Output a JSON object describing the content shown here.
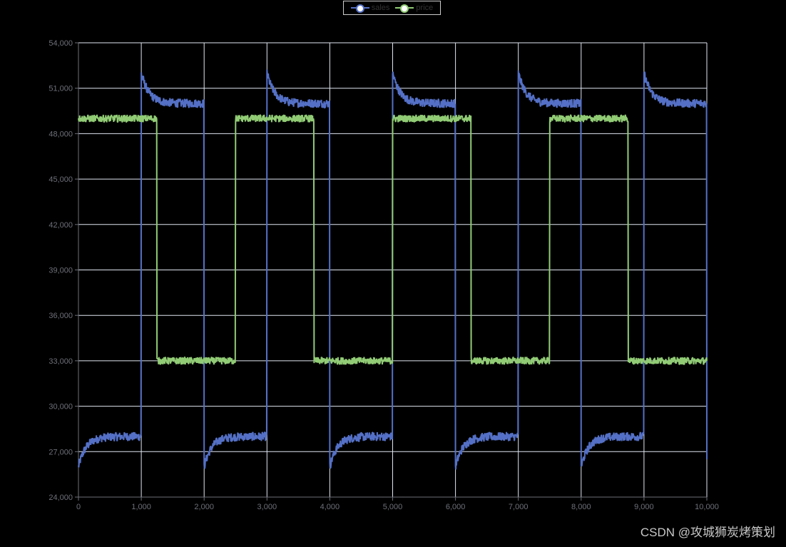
{
  "legend": {
    "items": [
      {
        "name": "sales",
        "color": "#5470c6"
      },
      {
        "name": "price",
        "color": "#91cc75"
      }
    ]
  },
  "watermark": "CSDN @攻城狮炭烤策划",
  "chart_data": {
    "type": "line",
    "title": "",
    "xlabel": "",
    "ylabel": "",
    "xlim": [
      0,
      10000
    ],
    "ylim": [
      24000,
      54000
    ],
    "x_ticks": [
      "0",
      "1,000",
      "2,000",
      "3,000",
      "4,000",
      "5,000",
      "6,000",
      "7,000",
      "8,000",
      "9,000",
      "10,000"
    ],
    "y_ticks": [
      "24,000",
      "27,000",
      "30,000",
      "33,000",
      "36,000",
      "39,000",
      "42,000",
      "45,000",
      "48,000",
      "51,000",
      "54,000"
    ],
    "grid": true,
    "legend_position": "top-center",
    "background": "#000000",
    "series": [
      {
        "name": "sales",
        "color": "#5470c6",
        "description": "Square-wave-like: low phase starts ~26,000 and rises to ~28,000 plateau; high phase starts ~52,000 and decays to ~50,000 plateau. Phase switches every 1,000 x-units.",
        "segments": [
          {
            "x0": 0,
            "x1": 1000,
            "start": 26000,
            "plateau": 28000,
            "noise": 300
          },
          {
            "x0": 1000,
            "x1": 2000,
            "start": 52000,
            "plateau": 50000,
            "noise": 300
          },
          {
            "x0": 2000,
            "x1": 3000,
            "start": 26000,
            "plateau": 28000,
            "noise": 300
          },
          {
            "x0": 3000,
            "x1": 4000,
            "start": 52000,
            "plateau": 50000,
            "noise": 300
          },
          {
            "x0": 4000,
            "x1": 5000,
            "start": 26000,
            "plateau": 28000,
            "noise": 300
          },
          {
            "x0": 5000,
            "x1": 6000,
            "start": 52000,
            "plateau": 50000,
            "noise": 300
          },
          {
            "x0": 6000,
            "x1": 7000,
            "start": 26000,
            "plateau": 28000,
            "noise": 300
          },
          {
            "x0": 7000,
            "x1": 8000,
            "start": 52000,
            "plateau": 50000,
            "noise": 300
          },
          {
            "x0": 8000,
            "x1": 9000,
            "start": 26000,
            "plateau": 28000,
            "noise": 300
          },
          {
            "x0": 9000,
            "x1": 10000,
            "start": 52000,
            "plateau": 50000,
            "noise": 300
          }
        ],
        "sampled": {
          "x": [
            0,
            100,
            250,
            500,
            999,
            1000,
            1100,
            1250,
            1500,
            1999,
            2000,
            2100,
            2250,
            2500,
            2999,
            3000,
            3100,
            3250,
            3500,
            3999,
            4000,
            4100,
            4250,
            4500,
            4999,
            5000,
            5100,
            5250,
            5500,
            5999,
            6000,
            6100,
            6250,
            6500,
            6999,
            7000,
            7100,
            7250,
            7500,
            7999,
            8000,
            8100,
            8250,
            8500,
            8999,
            9000,
            9100,
            9250,
            9500,
            10000
          ],
          "y": [
            26000,
            27000,
            27700,
            28000,
            28000,
            52000,
            51000,
            50400,
            50000,
            50000,
            26000,
            27000,
            27700,
            28000,
            28000,
            52000,
            51000,
            50400,
            50000,
            50000,
            26000,
            27000,
            27700,
            28000,
            28000,
            52000,
            51000,
            50400,
            50000,
            50000,
            26000,
            27000,
            27700,
            28000,
            28000,
            52000,
            51000,
            50400,
            50000,
            50000,
            26000,
            27000,
            27700,
            28000,
            28000,
            52000,
            51000,
            50400,
            50000,
            26500
          ]
        }
      },
      {
        "name": "price",
        "color": "#91cc75",
        "description": "Square wave between ~49,000 and ~33,000, switching every 1,250 x-units.",
        "segments": [
          {
            "x0": 0,
            "x1": 1250,
            "level": 49000,
            "noise": 250
          },
          {
            "x0": 1250,
            "x1": 2500,
            "level": 33000,
            "noise": 250
          },
          {
            "x0": 2500,
            "x1": 3750,
            "level": 49000,
            "noise": 250
          },
          {
            "x0": 3750,
            "x1": 5000,
            "level": 33000,
            "noise": 250
          },
          {
            "x0": 5000,
            "x1": 6250,
            "level": 49000,
            "noise": 250
          },
          {
            "x0": 6250,
            "x1": 7500,
            "level": 33000,
            "noise": 250
          },
          {
            "x0": 7500,
            "x1": 8750,
            "level": 49000,
            "noise": 250
          },
          {
            "x0": 8750,
            "x1": 10000,
            "level": 33000,
            "noise": 250
          }
        ],
        "sampled": {
          "x": [
            0,
            1249,
            1250,
            2499,
            2500,
            3749,
            3750,
            4999,
            5000,
            6249,
            6250,
            7499,
            7500,
            8749,
            8750,
            10000
          ],
          "y": [
            49000,
            49000,
            33000,
            33000,
            49000,
            49000,
            33000,
            33000,
            49000,
            49000,
            33000,
            33000,
            49000,
            49000,
            33000,
            33000
          ]
        }
      }
    ]
  }
}
